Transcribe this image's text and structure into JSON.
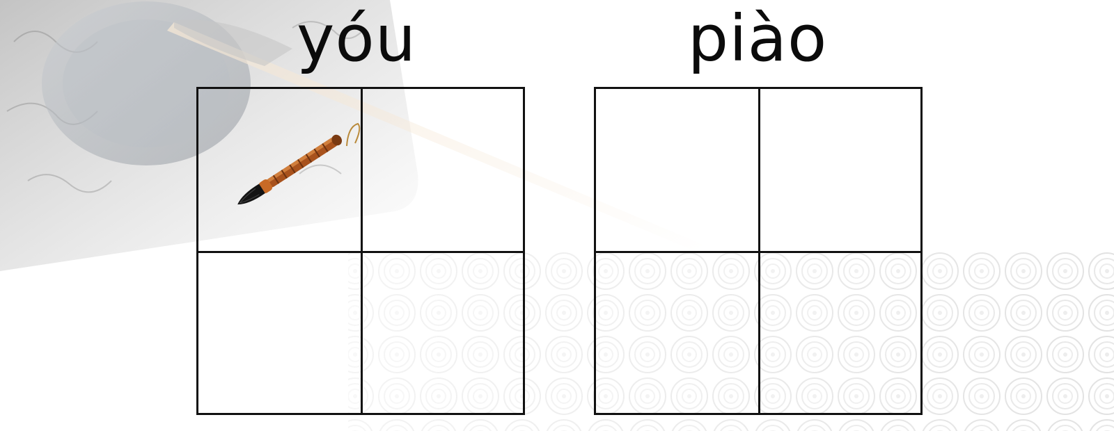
{
  "pinyin": [
    {
      "text": "yóu"
    },
    {
      "text": "piào"
    }
  ],
  "icons": {
    "brush": "calligraphy-brush-icon",
    "background": "inkstone-and-brush-illustration",
    "pattern": "swirl-cloud-pattern"
  },
  "colors": {
    "grid_line": "#111111",
    "text": "#0b0b0b",
    "background": "#ffffff"
  }
}
